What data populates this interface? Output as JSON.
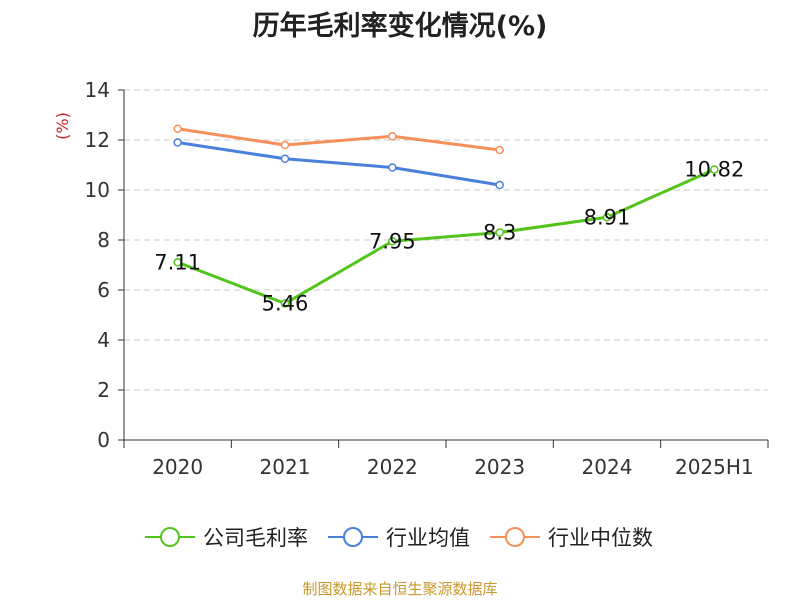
{
  "chart_data": {
    "type": "line",
    "title": "历年毛利率变化情况(%)",
    "ylabel": "(%)",
    "xlabel": "",
    "categories": [
      "2020",
      "2021",
      "2022",
      "2023",
      "2024",
      "2025H1"
    ],
    "ylim": [
      0,
      14
    ],
    "yticks": [
      0,
      2,
      4,
      6,
      8,
      10,
      12,
      14
    ],
    "grid": true,
    "legend_position": "bottom",
    "series": [
      {
        "name": "公司毛利率",
        "color": "#52c41a",
        "show_labels": true,
        "values": [
          7.11,
          5.46,
          7.95,
          8.3,
          8.91,
          10.82
        ],
        "labels": [
          "7.11",
          "5.46",
          "7.95",
          "8.3",
          "8.91",
          "10.82"
        ]
      },
      {
        "name": "行业均值",
        "color": "#4a7fdb",
        "show_labels": false,
        "values": [
          11.9,
          11.25,
          10.9,
          10.2,
          null,
          null
        ]
      },
      {
        "name": "行业中位数",
        "color": "#f5905a",
        "show_labels": false,
        "values": [
          12.45,
          11.8,
          12.15,
          11.6,
          null,
          null
        ]
      }
    ]
  },
  "footer": {
    "source": "制图数据来自恒生聚源数据库"
  }
}
